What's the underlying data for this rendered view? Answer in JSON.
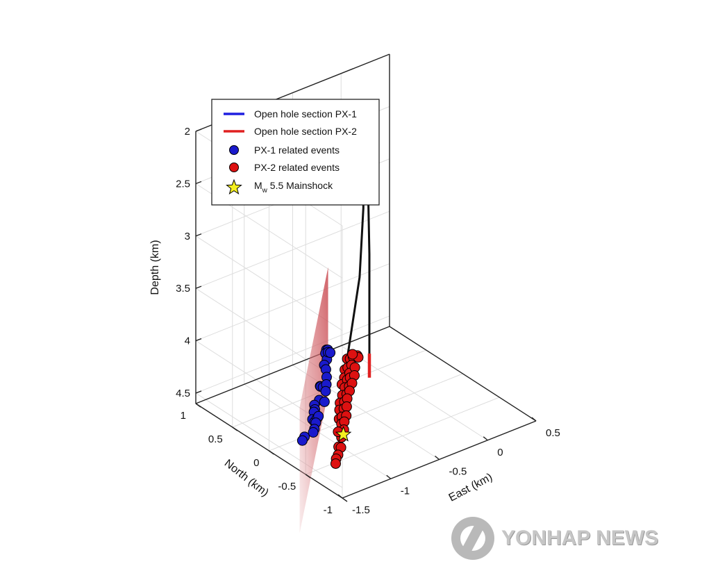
{
  "chart_data": {
    "type": "scatter",
    "projection": "3d",
    "axes": {
      "x": {
        "label": "East (km)",
        "ticks": [
          "-1.5",
          "-1",
          "-0.5",
          "0",
          "0.5"
        ],
        "range": [
          -1.5,
          0.5
        ]
      },
      "y": {
        "label": "North (km)",
        "ticks": [
          "-1",
          "-0.5",
          "0",
          "0.5",
          "1"
        ],
        "range": [
          -1,
          1
        ]
      },
      "z": {
        "label": "Depth (km)",
        "ticks": [
          "2",
          "2.5",
          "3",
          "3.5",
          "4",
          "4.5"
        ],
        "range": [
          2,
          4.6
        ],
        "reversed": true
      }
    },
    "grid": true,
    "legend": {
      "placement": "top-left",
      "entries": [
        {
          "label": "Open hole section PX-1",
          "marker": "line",
          "color": "#1f1fe0"
        },
        {
          "label": "Open hole section PX-2",
          "marker": "line",
          "color": "#e02020"
        },
        {
          "label": "PX-1 related events",
          "marker": "circle",
          "color": "#1a1acc"
        },
        {
          "label": "PX-2 related events",
          "marker": "circle",
          "color": "#dd1111"
        },
        {
          "label_main": "M",
          "label_sub": "w",
          "label_rest": " 5.5 Mainshock",
          "marker": "star",
          "color": "#f5f020"
        }
      ]
    },
    "series": [
      {
        "name": "PX-1 related events",
        "color": "#1a1acc",
        "points": [
          [
            -1.15,
            -0.32,
            3.62
          ],
          [
            -1.12,
            -0.3,
            3.64
          ],
          [
            -1.13,
            -0.28,
            3.68
          ],
          [
            -1.16,
            -0.34,
            3.7
          ],
          [
            -1.08,
            -0.25,
            3.7
          ],
          [
            -1.05,
            -0.24,
            3.72
          ],
          [
            -1.18,
            -0.33,
            3.75
          ],
          [
            -1.14,
            -0.3,
            3.82
          ],
          [
            -1.17,
            -0.35,
            3.86
          ],
          [
            -1.26,
            -0.38,
            3.9
          ],
          [
            -1.24,
            -0.36,
            3.92
          ],
          [
            -1.2,
            -0.34,
            3.95
          ],
          [
            -1.12,
            -0.28,
            3.98
          ],
          [
            -1.15,
            -0.31,
            4.02
          ],
          [
            -1.3,
            -0.42,
            4.0
          ],
          [
            -1.38,
            -0.46,
            4.0
          ],
          [
            -1.42,
            -0.52,
            4.0
          ],
          [
            -1.4,
            -0.48,
            4.05
          ],
          [
            -1.43,
            -0.5,
            4.1
          ],
          [
            -1.4,
            -0.49,
            4.14
          ],
          [
            -1.36,
            -0.47,
            4.13
          ],
          [
            -1.33,
            -0.45,
            4.13
          ],
          [
            -1.38,
            -0.48,
            4.16
          ],
          [
            -1.41,
            -0.5,
            4.2
          ],
          [
            -1.55,
            -0.55,
            4.2
          ],
          [
            -1.58,
            -0.56,
            4.22
          ],
          [
            -1.43,
            -0.51,
            4.22
          ],
          [
            -1.2,
            -0.36,
            4.08
          ]
        ]
      },
      {
        "name": "PX-2 related events",
        "color": "#dd1111",
        "points": [
          [
            -0.92,
            -0.3,
            3.8
          ],
          [
            -0.86,
            -0.26,
            3.84
          ],
          [
            -0.8,
            -0.22,
            3.86
          ],
          [
            -0.74,
            -0.2,
            3.88
          ],
          [
            -0.96,
            -0.32,
            3.88
          ],
          [
            -0.9,
            -0.28,
            3.9
          ],
          [
            -0.83,
            -0.24,
            3.92
          ],
          [
            -0.7,
            -0.16,
            3.93
          ],
          [
            -0.98,
            -0.34,
            3.94
          ],
          [
            -0.88,
            -0.28,
            3.96
          ],
          [
            -0.78,
            -0.22,
            3.97
          ],
          [
            -1.02,
            -0.36,
            3.98
          ],
          [
            -0.92,
            -0.3,
            4.0
          ],
          [
            -0.86,
            -0.26,
            4.02
          ],
          [
            -0.8,
            -0.24,
            4.03
          ],
          [
            -0.96,
            -0.32,
            4.05
          ],
          [
            -0.9,
            -0.3,
            4.07
          ],
          [
            -0.84,
            -0.26,
            4.08
          ],
          [
            -1.0,
            -0.34,
            4.1
          ],
          [
            -0.94,
            -0.32,
            4.12
          ],
          [
            -0.88,
            -0.28,
            4.13
          ],
          [
            -1.04,
            -0.36,
            4.15
          ],
          [
            -0.98,
            -0.34,
            4.17
          ],
          [
            -0.92,
            -0.3,
            4.18
          ],
          [
            -1.06,
            -0.38,
            4.2
          ],
          [
            -1.0,
            -0.36,
            4.22
          ],
          [
            -0.94,
            -0.32,
            4.24
          ],
          [
            -1.08,
            -0.4,
            4.27
          ],
          [
            -1.02,
            -0.36,
            4.29
          ],
          [
            -0.96,
            -0.34,
            4.31
          ],
          [
            -1.04,
            -0.38,
            4.34
          ],
          [
            -0.98,
            -0.34,
            4.36
          ],
          [
            -1.06,
            -0.4,
            4.4
          ],
          [
            -1.0,
            -0.36,
            4.42
          ],
          [
            -1.04,
            -0.38,
            4.47
          ],
          [
            -1.1,
            -0.42,
            4.52
          ],
          [
            -1.06,
            -0.4,
            4.55
          ],
          [
            -1.12,
            -0.44,
            4.58
          ],
          [
            -1.14,
            -0.44,
            4.61
          ],
          [
            -1.16,
            -0.46,
            4.64
          ],
          [
            -1.12,
            -0.44,
            4.36
          ],
          [
            -0.82,
            -0.24,
            3.82
          ]
        ]
      }
    ],
    "mainshock": {
      "label_main": "M",
      "label_sub": "w",
      "label_rest": " 5.5 Mainshock",
      "point": [
        -1.02,
        -0.38,
        4.45
      ]
    },
    "wells": [
      {
        "name": "PX-1",
        "color": "#111111",
        "path": [
          [
            -0.3,
            0.3,
            2.0
          ],
          [
            -0.31,
            0.29,
            2.3
          ],
          [
            -0.36,
            0.22,
            2.8
          ],
          [
            -0.55,
            0.02,
            3.3
          ],
          [
            -0.85,
            -0.22,
            3.8
          ],
          [
            -1.05,
            -0.4,
            4.08
          ]
        ],
        "open_hole": {
          "color": "#1f1fe0",
          "from": [
            -1.05,
            -0.4,
            4.08
          ],
          "to": [
            -1.15,
            -0.48,
            4.36
          ]
        }
      },
      {
        "name": "PX-2",
        "color": "#111111",
        "path": [
          [
            -0.27,
            0.27,
            2.0
          ],
          [
            -0.24,
            0.31,
            2.3
          ],
          [
            -0.26,
            0.29,
            2.6
          ],
          [
            -0.26,
            0.27,
            3.3
          ],
          [
            -0.26,
            0.27,
            4.0
          ],
          [
            -0.26,
            0.27,
            4.25
          ]
        ],
        "open_hole": {
          "color": "#e02020",
          "from": [
            -0.26,
            0.27,
            4.25
          ],
          "to": [
            -0.26,
            0.27,
            4.48
          ]
        }
      }
    ],
    "fault_plane": {
      "color": "#c9484f",
      "corners": [
        [
          -0.55,
          0.45,
          3.4
        ],
        [
          -0.55,
          0.45,
          4.6
        ],
        [
          -1.6,
          -0.55,
          5.1
        ],
        [
          -1.6,
          -0.55,
          3.9
        ]
      ]
    }
  },
  "watermark": {
    "text": "YONHAP NEWS"
  }
}
